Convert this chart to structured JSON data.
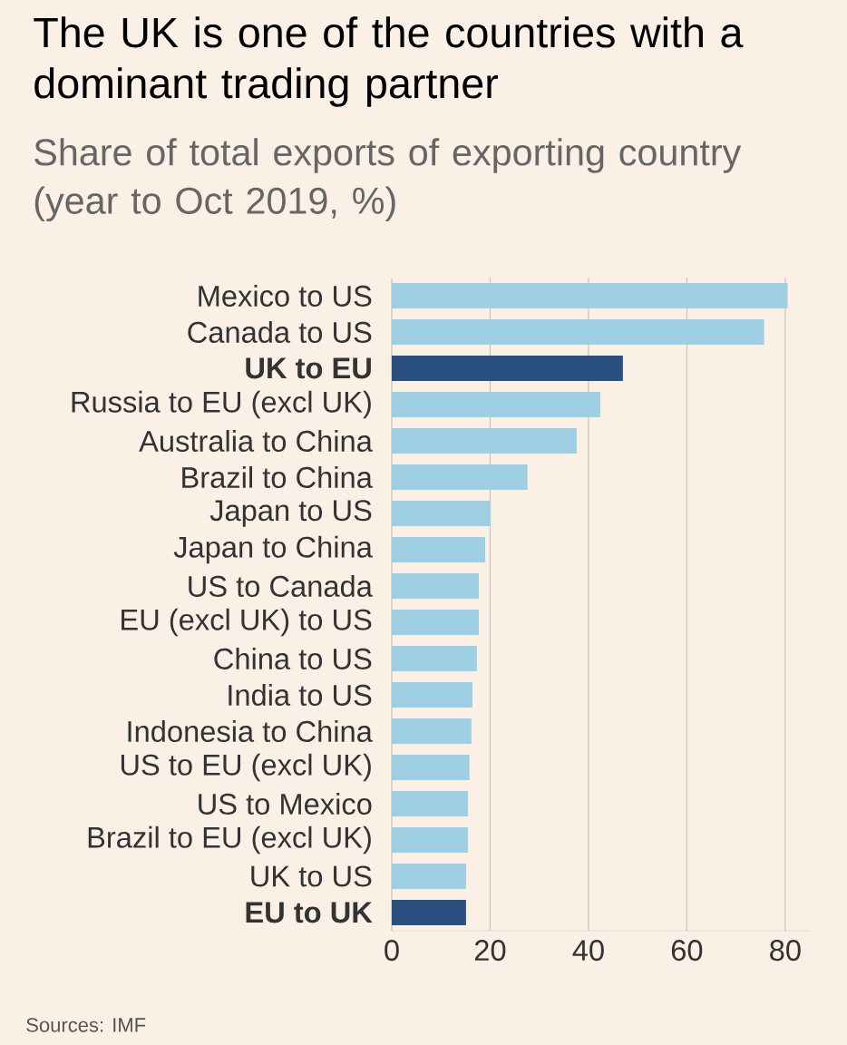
{
  "chart_data": {
    "type": "bar",
    "orientation": "horizontal",
    "title": "The UK is one of the countries with a dominant trading partner",
    "subtitle": "Share of total exports of exporting country (year to Oct 2019, %)",
    "categories": [
      "Mexico to US",
      "Canada to US",
      "UK to EU",
      "Russia to EU (excl UK)",
      "Australia to China",
      "Brazil to China",
      "Japan to US",
      "Japan to China",
      "US to Canada",
      "EU (excl UK) to US",
      "China to US",
      "India to US",
      "Indonesia to China",
      "US to EU (excl UK)",
      "US to Mexico",
      "Brazil to EU (excl UK)",
      "UK to US",
      "EU to UK"
    ],
    "values": [
      80.5,
      75.7,
      47,
      42.4,
      37.6,
      27.6,
      20.1,
      19,
      17.7,
      17.7,
      17.3,
      16.4,
      16.2,
      15.8,
      15.5,
      15.5,
      15.1,
      15.1
    ],
    "colors": [
      "#9ecfe3",
      "#9ecfe3",
      "#2a5082",
      "#9ecfe3",
      "#9ecfe3",
      "#9ecfe3",
      "#9ecfe3",
      "#9ecfe3",
      "#9ecfe3",
      "#9ecfe3",
      "#9ecfe3",
      "#9ecfe3",
      "#9ecfe3",
      "#9ecfe3",
      "#9ecfe3",
      "#9ecfe3",
      "#9ecfe3",
      "#2a5082"
    ],
    "xlim": [
      0,
      85
    ],
    "xticks": [
      0,
      20,
      40,
      60,
      80
    ],
    "grid": "x",
    "annotations": [
      "Sources: IMF"
    ]
  }
}
